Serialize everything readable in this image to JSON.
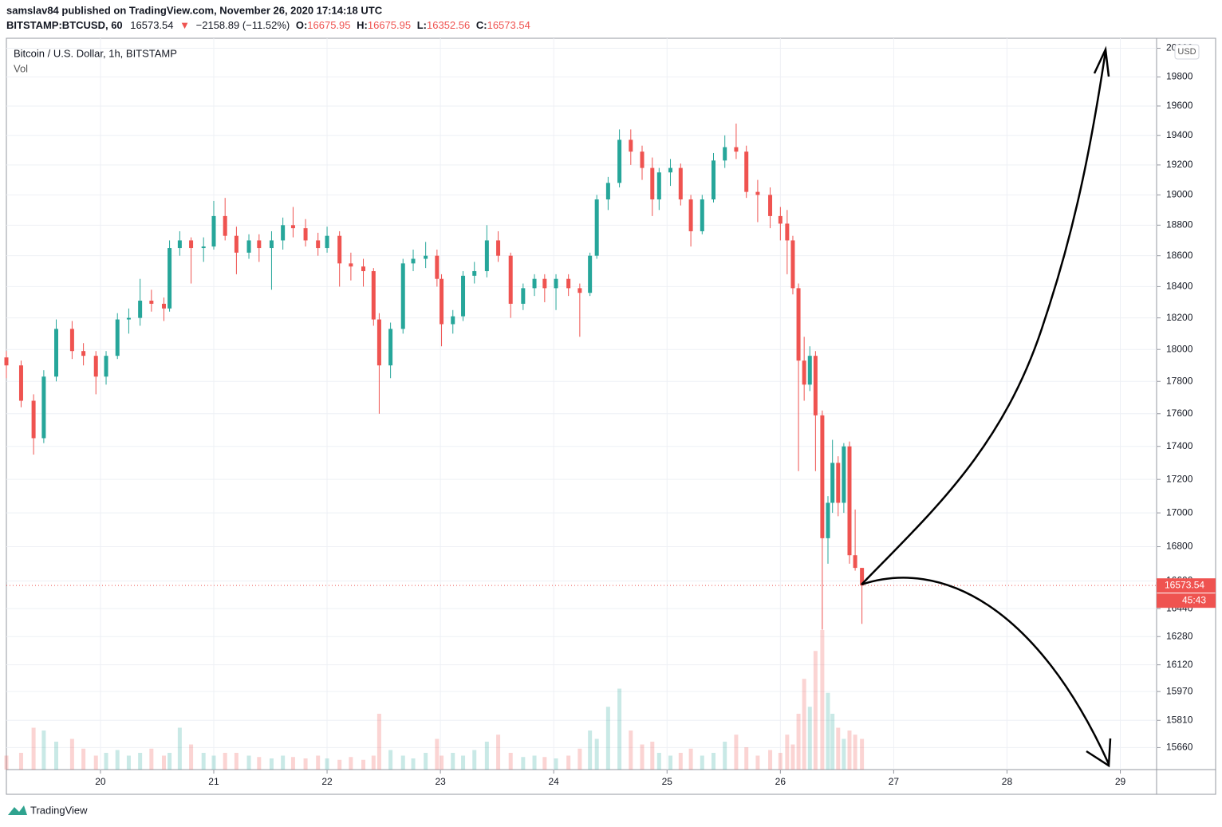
{
  "header": {
    "author_line": "samslav84 published on TradingView.com, November 26, 2020 17:14:18 UTC",
    "symbol": "BITSTAMP:BTCUSD, 60",
    "last": "16573.54",
    "arrow": "▼",
    "change": "−2158.89 (−11.52%)",
    "ohlc": [
      {
        "label": "O:",
        "value": "16675.95"
      },
      {
        "label": "H:",
        "value": "16675.95"
      },
      {
        "label": "L:",
        "value": "16352.56"
      },
      {
        "label": "C:",
        "value": "16573.54"
      }
    ]
  },
  "chart_data": {
    "type": "candlestick",
    "title": "Bitcoin / U.S. Dollar, 1h, BITSTAMP",
    "volume_label": "Vol",
    "currency": "USD",
    "countdown": "45:43",
    "up_color": "#26a69a",
    "down_color": "#ef5350",
    "log_scale": true,
    "grid": true,
    "xlim": [
      19.17,
      29.32
    ],
    "xticks": [
      20,
      21,
      22,
      23,
      24,
      25,
      26,
      27,
      28,
      29
    ],
    "ylim": [
      15540,
      20070
    ],
    "yticks": [
      15660,
      15810,
      15970,
      16120,
      16280,
      16440,
      16600,
      16800,
      17000,
      17200,
      17400,
      17600,
      17800,
      18000,
      18200,
      18400,
      18600,
      18800,
      19000,
      19200,
      19400,
      19600,
      19800,
      20000
    ],
    "x": [
      19.17,
      19.3,
      19.41,
      19.5,
      19.61,
      19.75,
      19.85,
      19.96,
      20.05,
      20.15,
      20.25,
      20.35,
      20.45,
      20.56,
      20.61,
      20.7,
      20.8,
      20.91,
      21.0,
      21.1,
      21.2,
      21.31,
      21.4,
      21.51,
      21.61,
      21.7,
      21.81,
      21.92,
      22.0,
      22.11,
      22.21,
      22.32,
      22.41,
      22.46,
      22.56,
      22.67,
      22.76,
      22.87,
      22.97,
      23.01,
      23.11,
      23.2,
      23.3,
      23.41,
      23.51,
      23.62,
      23.73,
      23.83,
      23.92,
      24.02,
      24.13,
      24.23,
      24.32,
      24.38,
      24.48,
      24.58,
      24.68,
      24.78,
      24.87,
      24.93,
      25.03,
      25.12,
      25.21,
      25.31,
      25.41,
      25.51,
      25.61,
      25.7,
      25.8,
      25.91,
      26.0,
      26.06,
      26.11,
      26.16,
      26.21,
      26.26,
      26.31,
      26.37,
      26.42,
      26.46,
      26.51,
      26.56,
      26.61,
      26.66,
      26.72
    ],
    "open": [
      17950,
      17900,
      17680,
      17450,
      17830,
      18130,
      17990,
      17960,
      17830,
      17960,
      18190,
      18200,
      18310,
      18290,
      18260,
      18650,
      18700,
      18650,
      18660,
      18860,
      18730,
      18620,
      18700,
      18650,
      18700,
      18800,
      18780,
      18700,
      18650,
      18730,
      18550,
      18530,
      18500,
      18190,
      17900,
      18130,
      18550,
      18580,
      18600,
      18450,
      18160,
      18210,
      18470,
      18500,
      18700,
      18600,
      18290,
      18390,
      18450,
      18390,
      18450,
      18390,
      18360,
      18600,
      18970,
      19080,
      19370,
      19290,
      19180,
      18970,
      19150,
      19180,
      18970,
      18760,
      18970,
      19230,
      19320,
      19290,
      19020,
      19000,
      18860,
      18810,
      18700,
      18390,
      17930,
      17780,
      17960,
      17590,
      16850,
      17060,
      17300,
      17060,
      17400,
      16750,
      16675.95
    ],
    "high": [
      17990,
      17930,
      17720,
      17870,
      18190,
      18180,
      18040,
      17990,
      17990,
      18230,
      18260,
      18450,
      18380,
      18330,
      18700,
      18760,
      18720,
      18720,
      18960,
      18980,
      18790,
      18740,
      18740,
      18760,
      18850,
      18920,
      18840,
      18750,
      18790,
      18760,
      18620,
      18580,
      18520,
      18230,
      18170,
      18580,
      18640,
      18690,
      18640,
      18480,
      18250,
      18500,
      18560,
      18800,
      18760,
      18620,
      18420,
      18480,
      18480,
      18480,
      18480,
      18420,
      18620,
      19000,
      19120,
      19440,
      19440,
      19330,
      19250,
      19180,
      19240,
      19210,
      19000,
      19000,
      19280,
      19400,
      19480,
      19330,
      19100,
      19050,
      18920,
      18900,
      18730,
      18420,
      18080,
      18020,
      17990,
      17620,
      17100,
      17440,
      17340,
      17420,
      17430,
      17020,
      16675.95
    ],
    "low": [
      17820,
      17640,
      17350,
      17420,
      17800,
      17940,
      17900,
      17720,
      17780,
      17940,
      18100,
      18150,
      18240,
      18180,
      18240,
      18600,
      18420,
      18560,
      18640,
      18700,
      18480,
      18580,
      18560,
      18380,
      18640,
      18720,
      18660,
      18600,
      18620,
      18400,
      18440,
      18400,
      18150,
      17600,
      17820,
      18100,
      18500,
      18520,
      18400,
      18020,
      18100,
      18180,
      18420,
      18460,
      18560,
      18200,
      18250,
      18340,
      18300,
      18250,
      18340,
      18080,
      18340,
      18580,
      18900,
      19050,
      19200,
      19100,
      18860,
      18900,
      19060,
      18930,
      18660,
      18740,
      18950,
      19180,
      19240,
      18980,
      18820,
      18780,
      18700,
      18480,
      18350,
      17250,
      17680,
      17740,
      17250,
      16320,
      16700,
      17000,
      16980,
      17000,
      16700,
      16660,
      16352.56
    ],
    "close": [
      17900,
      17680,
      17450,
      17830,
      18130,
      17990,
      17960,
      17830,
      17960,
      18190,
      18200,
      18310,
      18290,
      18260,
      18650,
      18700,
      18650,
      18660,
      18860,
      18730,
      18620,
      18700,
      18650,
      18700,
      18800,
      18780,
      18700,
      18650,
      18730,
      18550,
      18530,
      18500,
      18190,
      17900,
      18130,
      18550,
      18580,
      18600,
      18450,
      18160,
      18210,
      18470,
      18500,
      18700,
      18600,
      18290,
      18390,
      18450,
      18390,
      18450,
      18390,
      18360,
      18600,
      18970,
      19080,
      19370,
      19290,
      19180,
      18970,
      19150,
      19180,
      18970,
      18760,
      18970,
      19230,
      19320,
      19290,
      19020,
      19000,
      18860,
      18810,
      18700,
      18390,
      17930,
      17780,
      17960,
      17590,
      16850,
      17060,
      17300,
      17060,
      17400,
      16750,
      16675.95,
      16573.54
    ],
    "volume": [
      10,
      12,
      30,
      28,
      20,
      22,
      15,
      10,
      12,
      14,
      10,
      12,
      15,
      10,
      12,
      30,
      18,
      12,
      10,
      12,
      12,
      10,
      9,
      8,
      10,
      9,
      8,
      10,
      8,
      7,
      9,
      7,
      10,
      40,
      14,
      10,
      8,
      12,
      22,
      10,
      12,
      10,
      14,
      20,
      25,
      12,
      9,
      10,
      9,
      8,
      10,
      15,
      28,
      22,
      45,
      58,
      28,
      18,
      20,
      12,
      10,
      12,
      15,
      10,
      12,
      20,
      25,
      16,
      10,
      14,
      12,
      25,
      18,
      40,
      65,
      45,
      85,
      100,
      55,
      40,
      30,
      22,
      28,
      25,
      22
    ]
  },
  "footer": {
    "brand": "TradingView"
  }
}
